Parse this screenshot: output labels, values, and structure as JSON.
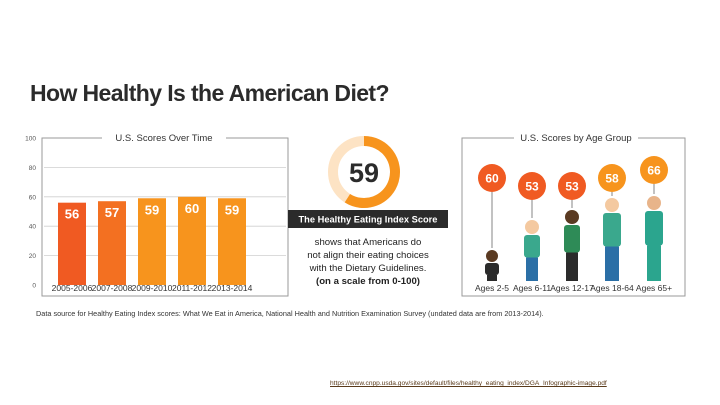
{
  "title": "How Healthy Is the American Diet?",
  "colors": {
    "bar_dark": "#f05a22",
    "bar_mid": "#f37021",
    "bar_light": "#f7941d",
    "gauge_track": "#fde3c4",
    "gauge_fill": "#f7941d",
    "header_bg": "#2b2b2b"
  },
  "chart_data": [
    {
      "type": "bar",
      "title": "U.S. Scores Over Time",
      "categories": [
        "2005-2006",
        "2007-2008",
        "2009-2010",
        "2011-2012",
        "2013-2014"
      ],
      "values": [
        56,
        57,
        59,
        60,
        59
      ],
      "ylim": [
        0,
        100
      ],
      "yticks": [
        0,
        20,
        40,
        60,
        80,
        100
      ],
      "xlabel": "",
      "ylabel": "",
      "grid": true
    },
    {
      "type": "bar",
      "title": "U.S. Scores by Age Group",
      "categories": [
        "Ages 2-5",
        "Ages 6-11",
        "Ages 12-17",
        "Ages 18-64",
        "Ages 65+"
      ],
      "values": [
        60,
        53,
        53,
        58,
        66
      ],
      "xlabel": "",
      "ylabel": ""
    }
  ],
  "index_gauge": {
    "score": 59,
    "max": 100,
    "header": "The Healthy Eating Index Score",
    "lines": [
      "shows that Americans do",
      "not align their eating choices",
      "with the Dietary Guidelines.",
      "(on a scale from 0-100)"
    ]
  },
  "source": "Data source for Healthy Eating Index scores: What We Eat in America, National Health and Nutrition Examination Survey (undated data are from 2013-2014).",
  "url": "https://www.cnpp.usda.gov/sites/default/files/healthy_eating_index/DGA_Infographic-image.pdf"
}
